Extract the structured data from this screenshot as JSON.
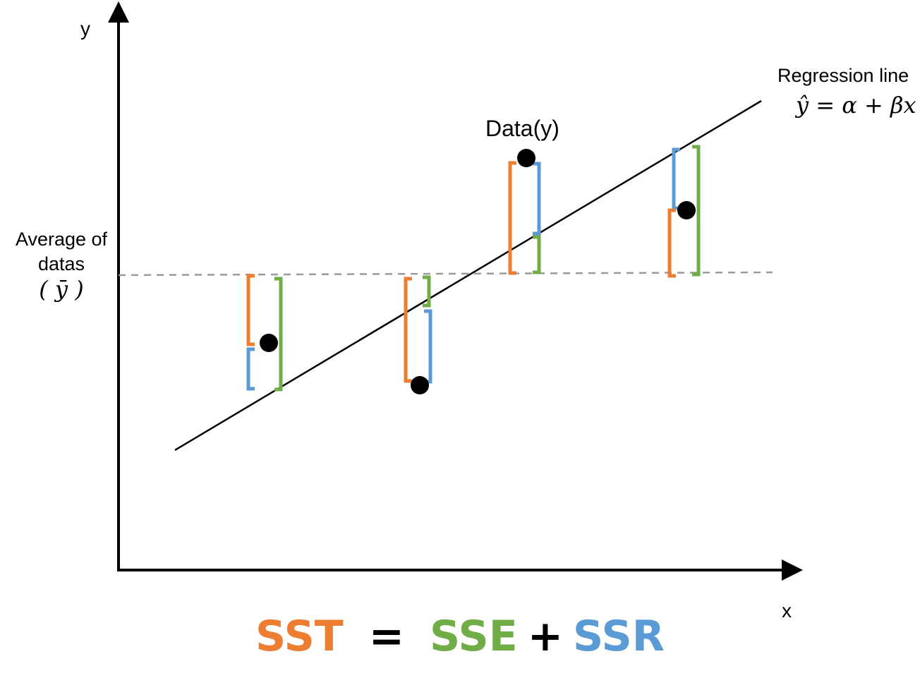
{
  "axes": {
    "y_label": "y",
    "x_label": "x"
  },
  "regression": {
    "label": "Regression line",
    "equation": "ŷ = α + βx"
  },
  "data_label": "Data(y)",
  "average": {
    "label_line1": "Average of",
    "label_line2": "datas",
    "symbol": "( ȳ )"
  },
  "formula": {
    "sst": "SST",
    "equals": "=",
    "sse": "SSE",
    "plus": "+",
    "ssr": "SSR"
  },
  "colors": {
    "sst": "#ED7D31",
    "sse": "#70AD47",
    "ssr": "#5B9BD5",
    "axis": "#000000",
    "mean_line": "#9a9a9a"
  }
}
